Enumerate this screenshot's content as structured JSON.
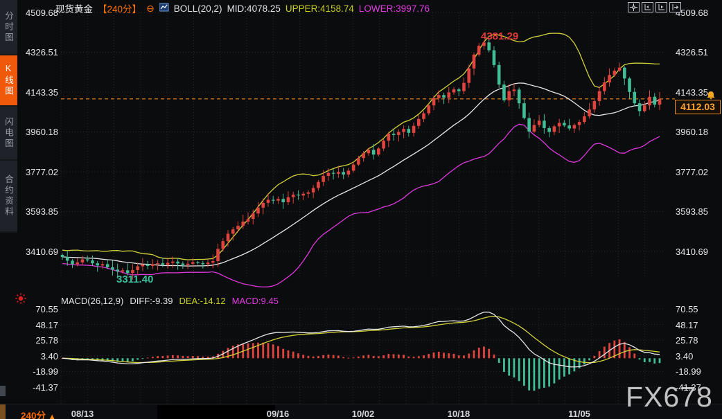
{
  "toolbar": {
    "title": "现货黄金",
    "period": "【240分】",
    "boll_label": "BOLL(20,2)",
    "mid": "MID:4078.25",
    "upper": "UPPER:4158.74",
    "lower": "LOWER:3997.76"
  },
  "sidebar": {
    "items": [
      {
        "label": "分时图",
        "active": false
      },
      {
        "label": "K线图",
        "active": true
      },
      {
        "label": "闪电图",
        "active": false
      },
      {
        "label": "合约资料",
        "active": false
      }
    ]
  },
  "main_axis": [
    "4509.68",
    "4326.51",
    "4143.35",
    "3960.18",
    "3777.02",
    "3593.85",
    "3410.69"
  ],
  "macd_axis": [
    "70.55",
    "48.17",
    "25.78",
    "3.40",
    "-18.99",
    "-41.37"
  ],
  "macd_header": {
    "label": "MACD(26,12,9)",
    "diff": "DIFF:-9.39",
    "dea": "DEA:-14.12",
    "macd": "MACD:9.45"
  },
  "annotations": {
    "high": "4381.29",
    "low": "3311.40",
    "last_price": "4112.03"
  },
  "bottom": {
    "period": "240分",
    "dates": [
      "08/13",
      "09/16",
      "10/02",
      "10/18",
      "11/05"
    ]
  },
  "watermark": "FX678",
  "colors": {
    "up": "#e0443e",
    "down": "#41bd98",
    "boll_upper": "#d4d23a",
    "boll_mid": "#e8e8e8",
    "boll_lower": "#e038e0",
    "grid": "#2c2d31",
    "price_line": "#ef8b1f",
    "accent_orange": "#ff7300"
  },
  "chart_data": {
    "type": "candlestick+macd",
    "title": "现货黄金 240分 K线 BOLL(20,2) 与 MACD(26,12,9)",
    "y_axis_main": [
      4509.68,
      4326.51,
      4143.35,
      3960.18,
      3777.02,
      3593.85,
      3410.69
    ],
    "y_axis_macd": [
      70.55,
      48.17,
      25.78,
      3.4,
      -18.99,
      -41.37
    ],
    "high_annotation": 4381.29,
    "low_annotation": 3311.4,
    "last_price": 4112.03,
    "boll": {
      "period": 20,
      "mult": 2,
      "mid": 4078.25,
      "upper": 4158.74,
      "lower": 3997.76
    },
    "macd": {
      "params": [
        26,
        12,
        9
      ],
      "diff": -9.39,
      "dea": -14.12,
      "macd": 9.45
    },
    "date_ticks": {
      "08/13": 4,
      "09/16": 43,
      "10/02": 60,
      "10/18": 79,
      "11/05": 103
    },
    "closes": [
      3385,
      3368,
      3352,
      3360,
      3374,
      3369,
      3356,
      3346,
      3352,
      3338,
      3327,
      3318,
      3324,
      3311.4,
      3325,
      3342,
      3350,
      3344,
      3352,
      3356,
      3349,
      3358,
      3364,
      3355,
      3348,
      3354,
      3361,
      3357,
      3352,
      3359,
      3366,
      3422,
      3458,
      3492,
      3512,
      3528,
      3548,
      3560,
      3585,
      3612,
      3634,
      3648,
      3644,
      3652,
      3637,
      3660,
      3672,
      3668,
      3676,
      3682,
      3702,
      3730,
      3758,
      3772,
      3768,
      3776,
      3764,
      3782,
      3810,
      3840,
      3862,
      3878,
      3856,
      3884,
      3920,
      3952,
      3946,
      3960,
      3974,
      3956,
      3988,
      4020,
      4046,
      4082,
      4116,
      4130,
      4118,
      4142,
      4156,
      4148,
      4186,
      4252,
      4316,
      4356,
      4372,
      4336,
      4268,
      4178,
      4106,
      4148,
      4155,
      4092,
      4024,
      3962,
      3992,
      4012,
      3978,
      3960,
      3986,
      4002,
      3990,
      3976,
      3992,
      4006,
      4032,
      4064,
      4102,
      4148,
      4188,
      4222,
      4242,
      4256,
      4206,
      4144,
      4092,
      4056,
      4082,
      4122,
      4086,
      4112.03
    ]
  }
}
